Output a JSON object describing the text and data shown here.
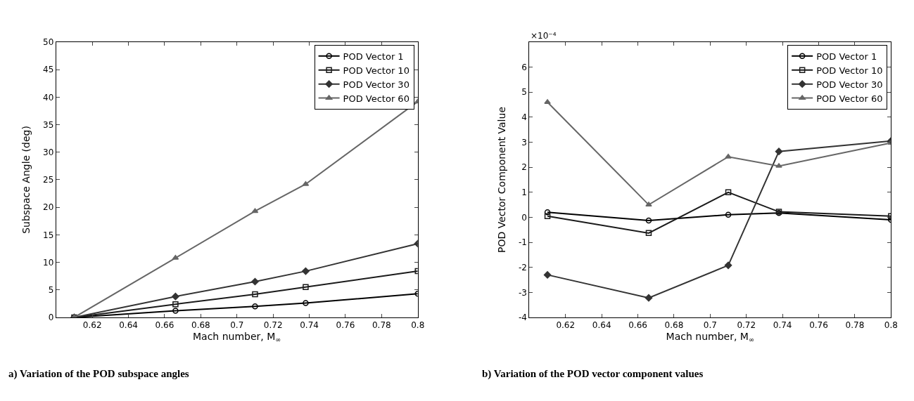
{
  "chart_data": [
    {
      "type": "line",
      "xlabel": "Mach number, M$_{∞}$",
      "ylabel": "Subspace Angle (deg)",
      "x": [
        0.61,
        0.666,
        0.71,
        0.738,
        0.8
      ],
      "xlim": [
        0.6,
        0.8
      ],
      "xticks": [
        0.62,
        0.64,
        0.66,
        0.68,
        0.7,
        0.72,
        0.74,
        0.76,
        0.78,
        0.8
      ],
      "ylim": [
        0,
        50
      ],
      "yticks": [
        0,
        5,
        10,
        15,
        20,
        25,
        30,
        35,
        40,
        45,
        50
      ],
      "legend": "top right",
      "annotations": [
        "a) Variation of the POD subspace angles"
      ],
      "series": [
        {
          "name": "POD Vector 1",
          "color": "#000000",
          "marker": "circle",
          "values": [
            0,
            1.2,
            2.0,
            2.6,
            4.3
          ]
        },
        {
          "name": "POD Vector 10",
          "color": "#1a1a1a",
          "marker": "square",
          "values": [
            0,
            2.4,
            4.2,
            5.5,
            8.4
          ]
        },
        {
          "name": "POD Vector 30",
          "color": "#333333",
          "marker": "diamond",
          "values": [
            0,
            3.8,
            6.5,
            8.4,
            13.4
          ]
        },
        {
          "name": "POD Vector 60",
          "color": "#666666",
          "marker": "triangle",
          "values": [
            0,
            10.8,
            19.3,
            24.2,
            39.2
          ]
        }
      ]
    },
    {
      "type": "line",
      "xlabel": "Mach number, M$_{∞}$",
      "ylabel": "POD Vector Component Value",
      "x": [
        0.61,
        0.666,
        0.71,
        0.738,
        0.8
      ],
      "xlim": [
        0.6,
        0.8
      ],
      "xticks": [
        0.62,
        0.64,
        0.66,
        0.68,
        0.7,
        0.72,
        0.74,
        0.76,
        0.78,
        0.8
      ],
      "ylim": [
        -4,
        7
      ],
      "yticks": [
        -4,
        -3,
        -2,
        -1,
        0,
        1,
        2,
        3,
        4,
        5,
        6
      ],
      "legend": "top right",
      "annotations": [
        "×10⁻⁴",
        "b) Variation of the POD vector component values"
      ],
      "series": [
        {
          "name": "POD Vector 1",
          "color": "#000000",
          "marker": "circle",
          "values": [
            0.2,
            -0.13,
            0.1,
            0.17,
            -0.1
          ]
        },
        {
          "name": "POD Vector 10",
          "color": "#1a1a1a",
          "marker": "square",
          "values": [
            0.05,
            -0.63,
            1.0,
            0.22,
            0.05
          ]
        },
        {
          "name": "POD Vector 30",
          "color": "#333333",
          "marker": "diamond",
          "values": [
            -2.3,
            -3.22,
            -1.92,
            2.63,
            3.05
          ]
        },
        {
          "name": "POD Vector 60",
          "color": "#666666",
          "marker": "triangle",
          "values": [
            4.6,
            0.5,
            2.42,
            2.05,
            2.97
          ]
        }
      ]
    }
  ]
}
